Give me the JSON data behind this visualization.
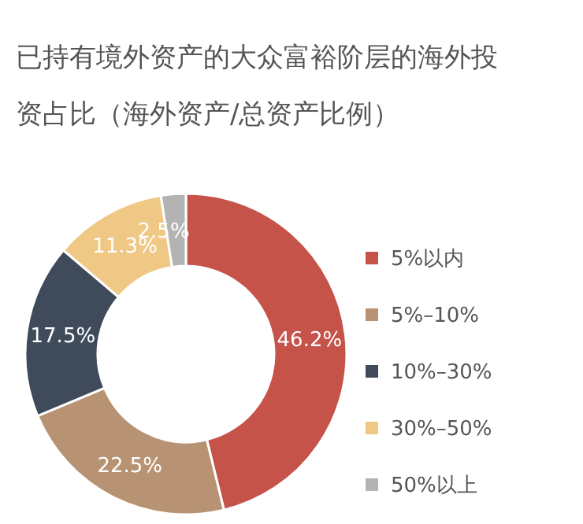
{
  "chart_data": {
    "type": "donut",
    "title": "已持有境外资产的大众富裕阶层的海外投资占比（海外资产/总资产比例）",
    "categories": [
      "5%以内",
      "5%–10%",
      "10%–30%",
      "30%–50%",
      "50%以上"
    ],
    "values": [
      46.2,
      22.5,
      17.5,
      11.3,
      2.5
    ],
    "colors": [
      "#c5534a",
      "#b89373",
      "#3f4b5b",
      "#efc886",
      "#b3b3b3"
    ],
    "value_labels": [
      "46.2%",
      "22.5%",
      "17.5%",
      "11.3%",
      "2.5%"
    ],
    "legend": "right"
  }
}
